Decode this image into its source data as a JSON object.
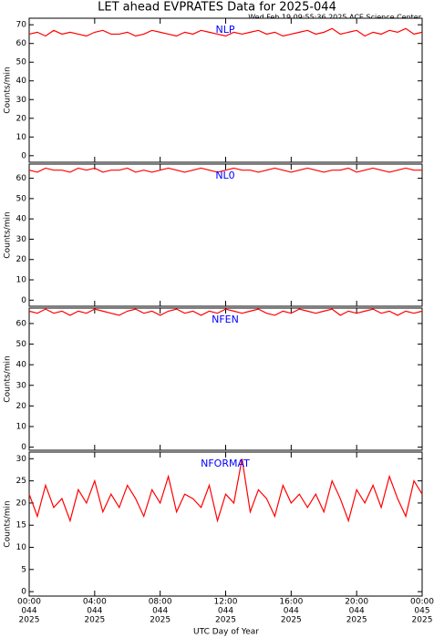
{
  "title": "LET ahead EVPRATES Data for 2025-044",
  "annotation": "Wed Feb 19 09:55:36 2025 ACE Science Center",
  "xlabel": "UTC Day of Year",
  "chart_data": [
    {
      "type": "line",
      "ylabel": "Counts/min",
      "xlim": [
        0,
        24
      ],
      "ylim": [
        -3.5,
        73.5
      ],
      "yticks": [
        0,
        10,
        20,
        30,
        40,
        50,
        60,
        70
      ],
      "xticks": [
        0,
        4,
        8,
        12,
        16,
        20,
        24
      ],
      "x": [
        0,
        0.5,
        1,
        1.5,
        2,
        2.5,
        3,
        3.5,
        4,
        4.5,
        5,
        5.5,
        6,
        6.5,
        7,
        7.5,
        8,
        8.5,
        9,
        9.5,
        10,
        10.5,
        11,
        11.5,
        12,
        12.5,
        13,
        13.5,
        14,
        14.5,
        15,
        15.5,
        16,
        16.5,
        17,
        17.5,
        18,
        18.5,
        19,
        19.5,
        20,
        20.5,
        21,
        21.5,
        22,
        22.5,
        23,
        23.5,
        24
      ],
      "series": [
        {
          "name": "NLP",
          "color": "#ff0000",
          "label_color": "#0000ff",
          "values": [
            65,
            66,
            64,
            67,
            65,
            66,
            65,
            64,
            66,
            67,
            65,
            65,
            66,
            64,
            65,
            67,
            66,
            65,
            64,
            66,
            65,
            67,
            66,
            65,
            64,
            66,
            65,
            66,
            67,
            65,
            66,
            64,
            65,
            66,
            67,
            65,
            66,
            68,
            65,
            66,
            67,
            64,
            66,
            65,
            67,
            66,
            68,
            65,
            66
          ]
        }
      ]
    },
    {
      "type": "line",
      "ylabel": "Counts/min",
      "xlim": [
        0,
        24
      ],
      "ylim": [
        -3,
        67
      ],
      "yticks": [
        0,
        10,
        20,
        30,
        40,
        50,
        60
      ],
      "xticks": [
        0,
        4,
        8,
        12,
        16,
        20,
        24
      ],
      "x": [
        0,
        0.5,
        1,
        1.5,
        2,
        2.5,
        3,
        3.5,
        4,
        4.5,
        5,
        5.5,
        6,
        6.5,
        7,
        7.5,
        8,
        8.5,
        9,
        9.5,
        10,
        10.5,
        11,
        11.5,
        12,
        12.5,
        13,
        13.5,
        14,
        14.5,
        15,
        15.5,
        16,
        16.5,
        17,
        17.5,
        18,
        18.5,
        19,
        19.5,
        20,
        20.5,
        21,
        21.5,
        22,
        22.5,
        23,
        23.5,
        24
      ],
      "series": [
        {
          "name": "NL0",
          "color": "#ff0000",
          "label_color": "#0000ff",
          "values": [
            64,
            63,
            65,
            64,
            64,
            63,
            65,
            64,
            65,
            63,
            64,
            64,
            65,
            63,
            64,
            63,
            64,
            65,
            64,
            63,
            64,
            65,
            64,
            63,
            64,
            65,
            64,
            64,
            63,
            64,
            65,
            64,
            63,
            64,
            65,
            64,
            63,
            64,
            64,
            65,
            63,
            64,
            65,
            64,
            63,
            64,
            65,
            64,
            64
          ]
        }
      ]
    },
    {
      "type": "line",
      "ylabel": "Counts/min",
      "xlim": [
        0,
        24
      ],
      "ylim": [
        -1.5,
        67.5
      ],
      "yticks": [
        0,
        10,
        20,
        30,
        40,
        50,
        60
      ],
      "xticks": [
        0,
        4,
        8,
        12,
        16,
        20,
        24
      ],
      "x": [
        0,
        0.5,
        1,
        1.5,
        2,
        2.5,
        3,
        3.5,
        4,
        4.5,
        5,
        5.5,
        6,
        6.5,
        7,
        7.5,
        8,
        8.5,
        9,
        9.5,
        10,
        10.5,
        11,
        11.5,
        12,
        12.5,
        13,
        13.5,
        14,
        14.5,
        15,
        15.5,
        16,
        16.5,
        17,
        17.5,
        18,
        18.5,
        19,
        19.5,
        20,
        20.5,
        21,
        21.5,
        22,
        22.5,
        23,
        23.5,
        24
      ],
      "series": [
        {
          "name": "NFEN",
          "color": "#ff0000",
          "label_color": "#0000ff",
          "values": [
            66,
            65,
            67,
            65,
            66,
            64,
            66,
            65,
            67,
            66,
            65,
            64,
            66,
            67,
            65,
            66,
            64,
            66,
            67,
            65,
            66,
            64,
            66,
            65,
            67,
            66,
            65,
            66,
            67,
            65,
            64,
            66,
            65,
            67,
            66,
            65,
            66,
            67,
            64,
            66,
            65,
            66,
            67,
            65,
            66,
            64,
            66,
            65,
            66
          ]
        }
      ]
    },
    {
      "type": "line",
      "ylabel": "Counts/min",
      "xlim": [
        0,
        24
      ],
      "ylim": [
        -1,
        31.5
      ],
      "yticks": [
        0,
        5,
        10,
        15,
        20,
        25,
        30
      ],
      "xticks": [
        {
          "value": 0,
          "label": [
            "00:00",
            "044",
            "2025"
          ]
        },
        {
          "value": 4,
          "label": [
            "04:00",
            "044",
            "2025"
          ]
        },
        {
          "value": 8,
          "label": [
            "08:00",
            "044",
            "2025"
          ]
        },
        {
          "value": 12,
          "label": [
            "12:00",
            "044",
            "2025"
          ]
        },
        {
          "value": 16,
          "label": [
            "16:00",
            "044",
            "2025"
          ]
        },
        {
          "value": 20,
          "label": [
            "20:00",
            "044",
            "2025"
          ]
        },
        {
          "value": 24,
          "label": [
            "00:00",
            "045",
            "2025"
          ]
        }
      ],
      "x": [
        0,
        0.5,
        1,
        1.5,
        2,
        2.5,
        3,
        3.5,
        4,
        4.5,
        5,
        5.5,
        6,
        6.5,
        7,
        7.5,
        8,
        8.5,
        9,
        9.5,
        10,
        10.5,
        11,
        11.5,
        12,
        12.5,
        13,
        13.5,
        14,
        14.5,
        15,
        15.5,
        16,
        16.5,
        17,
        17.5,
        18,
        18.5,
        19,
        19.5,
        20,
        20.5,
        21,
        21.5,
        22,
        22.5,
        23,
        23.5,
        24
      ],
      "series": [
        {
          "name": "NFORMAT",
          "color": "#ff0000",
          "label_color": "#0000ff",
          "values": [
            22,
            17,
            24,
            19,
            21,
            16,
            23,
            20,
            25,
            18,
            22,
            19,
            24,
            21,
            17,
            23,
            20,
            26,
            18,
            22,
            21,
            19,
            24,
            16,
            22,
            20,
            30,
            18,
            23,
            21,
            17,
            24,
            20,
            22,
            19,
            22,
            18,
            25,
            21,
            16,
            23,
            20,
            24,
            19,
            26,
            21,
            17,
            25,
            22
          ]
        }
      ]
    }
  ]
}
